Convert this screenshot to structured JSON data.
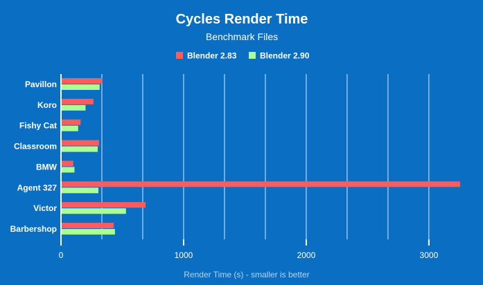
{
  "chart_data": {
    "type": "bar",
    "orientation": "horizontal",
    "title": "Cycles Render Time",
    "subtitle": "Benchmark Files",
    "xlabel": "Render Time (s) - smaller is better",
    "ylabel": "",
    "xlim": [
      0,
      3300
    ],
    "xticks": [
      0,
      1000,
      2000,
      3000
    ],
    "grid_step": 333.33,
    "grid": true,
    "legend_position": "top-center",
    "categories": [
      "Pavillon",
      "Koro",
      "Fishy Cat",
      "Classroom",
      "BMW",
      "Agent 327",
      "Victor",
      "Barbershop"
    ],
    "series": [
      {
        "name": "Blender 2.83",
        "color": "#fe5c5c",
        "values": [
          335,
          265,
          160,
          310,
          100,
          3255,
          690,
          430
        ]
      },
      {
        "name": "Blender 2.90",
        "color": "#aaff99",
        "values": [
          315,
          200,
          140,
          300,
          110,
          305,
          530,
          440
        ]
      }
    ]
  }
}
